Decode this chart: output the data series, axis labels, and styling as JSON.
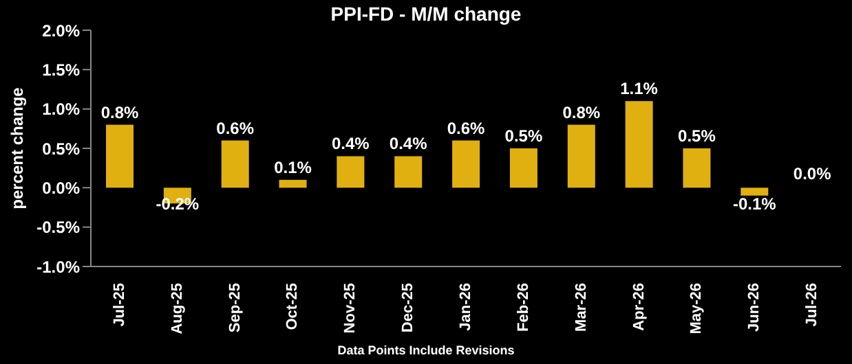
{
  "chart_data": {
    "type": "bar",
    "title": "PPI-FD - M/M change",
    "ylabel": "percent change",
    "annotations": [
      "Data Points Include Revisions"
    ],
    "categories": [
      "Jul-25",
      "Aug-25",
      "Sep-25",
      "Oct-25",
      "Nov-25",
      "Dec-25",
      "Jan-26",
      "Feb-26",
      "Mar-26",
      "Apr-26",
      "May-26",
      "Jun-26",
      "Jul-26"
    ],
    "values": [
      0.8,
      -0.2,
      0.6,
      0.1,
      0.4,
      0.4,
      0.6,
      0.5,
      0.8,
      1.1,
      0.5,
      -0.1,
      0.0
    ],
    "value_labels": [
      "0.8%",
      "-0.2%",
      "0.6%",
      "0.1%",
      "0.4%",
      "0.4%",
      "0.6%",
      "0.5%",
      "0.8%",
      "1.1%",
      "0.5%",
      "-0.1%",
      "0.0%"
    ],
    "color": "#e0b010",
    "ylim": [
      -1.0,
      2.0
    ],
    "yticks": [
      {
        "value": -1.0,
        "label": "-1.0%"
      },
      {
        "value": -0.5,
        "label": "-0.5%"
      },
      {
        "value": 0,
        "label": "0.0%"
      },
      {
        "value": 0.5,
        "label": "0.5%"
      },
      {
        "value": 1.0,
        "label": "1.0%"
      },
      {
        "value": 1.5,
        "label": "1.5%"
      },
      {
        "value": 2.0,
        "label": "2.0%"
      }
    ],
    "grid": false,
    "legend": false
  }
}
